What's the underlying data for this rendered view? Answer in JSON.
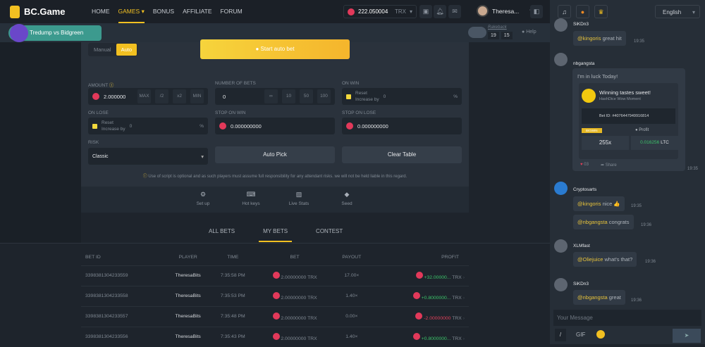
{
  "header": {
    "brand": "BC.Game",
    "nav": [
      "HOME",
      "GAMES",
      "BONUS",
      "AFFILIATE",
      "FORUM"
    ],
    "active_nav": "GAMES",
    "balance": "222.050004",
    "currency": "TRX",
    "username": "Theresa...",
    "promo": "Tredump vs Bidgreen"
  },
  "rakeback": {
    "label": "Rakeback",
    "h": "19",
    "m": "15",
    "help": "Help"
  },
  "game": {
    "modes": [
      "Manual",
      "Auto"
    ],
    "active_mode": "Auto",
    "start_label": "Start auto bet",
    "amount_label": "AMOUNT",
    "amount": "2.000000",
    "amount_chips": [
      "MAX",
      "/2",
      "x2",
      "MIN"
    ],
    "bets_label": "NUMBER OF BETS",
    "bets": "0",
    "bets_chips": [
      "∞",
      "10",
      "50",
      "100"
    ],
    "on_win_label": "ON WIN",
    "on_lose_label": "ON LOSE",
    "reset": "Reset",
    "increase_by": "Increase by",
    "pct_value": "0",
    "pct": "%",
    "stop_win_label": "STOP ON WIN",
    "stop_win": "0.000000000",
    "stop_lose_label": "STOP ON LOSE",
    "stop_lose": "0.000000000",
    "risk_label": "RISK",
    "risk": "Classic",
    "auto_pick": "Auto Pick",
    "clear_table": "Clear Table",
    "warning": "Use of script is optional and as such players must assume full responsibility for any attendant risks. we will not be held liable in this regard."
  },
  "tools": [
    "Set up",
    "Hot keys",
    "Live Stats",
    "Seed"
  ],
  "bets_tabs": [
    "ALL BETS",
    "MY BETS",
    "CONTEST"
  ],
  "active_tab": "MY BETS",
  "table": {
    "headers": [
      "BET ID",
      "PLAYER",
      "TIME",
      "BET",
      "PAYOUT",
      "PROFIT"
    ],
    "rows": [
      {
        "id": "3398381304233559",
        "player": "TheresaBits",
        "time": "7:35:58 PM",
        "bet": "2.00000000",
        "cur": "TRX",
        "payout": "17.00×",
        "profit": "+32.00000...",
        "win": true
      },
      {
        "id": "3398381304233558",
        "player": "TheresaBits",
        "time": "7:35:53 PM",
        "bet": "2.00000000",
        "cur": "TRX",
        "payout": "1.40×",
        "profit": "+0.8000000...",
        "win": true
      },
      {
        "id": "3398381304233557",
        "player": "TheresaBits",
        "time": "7:35:48 PM",
        "bet": "2.00000000",
        "cur": "TRX",
        "payout": "0.00×",
        "profit": "-2.00000000",
        "win": false
      },
      {
        "id": "3398381304233556",
        "player": "TheresaBits",
        "time": "7:35:43 PM",
        "bet": "2.00000000",
        "cur": "TRX",
        "payout": "1.40×",
        "profit": "+0.8000000...",
        "win": true
      }
    ]
  },
  "chat": {
    "language": "English",
    "messages": [
      {
        "user": "SiKDn3",
        "mention": "@kingoris",
        "text": "great hit",
        "time": "19:35"
      },
      {
        "user": "nbgangsta",
        "text": "I'm in luck Today!",
        "time": "19:35"
      },
      {
        "user": "Cryptosarts",
        "mention": "@kingoris",
        "text": "nice 👍",
        "time": "19:35"
      },
      {
        "user": "",
        "mention": "@nbgangsta",
        "text": "congrats",
        "time": "19:36"
      },
      {
        "user": "XLMfast",
        "mention": "@Oliejuice",
        "text": "what's that?",
        "time": "19:36"
      },
      {
        "user": "SiKDn3",
        "mention": "@nbgangsta",
        "text": "great",
        "time": "19:36"
      }
    ],
    "card": {
      "title": "Winning tastes sweet!",
      "subtitle": "HashDice Wow Moment",
      "bet_id": "Bet ID: #4076447949916814",
      "badge": "BIGWIN",
      "profit_label": "Profit",
      "multiplier": "255x",
      "profit": "0.016256",
      "profit_cur": "LTC",
      "likes": "03",
      "share": "Share"
    },
    "placeholder": "Your Message",
    "slash": "/",
    "gif": "GIF"
  }
}
